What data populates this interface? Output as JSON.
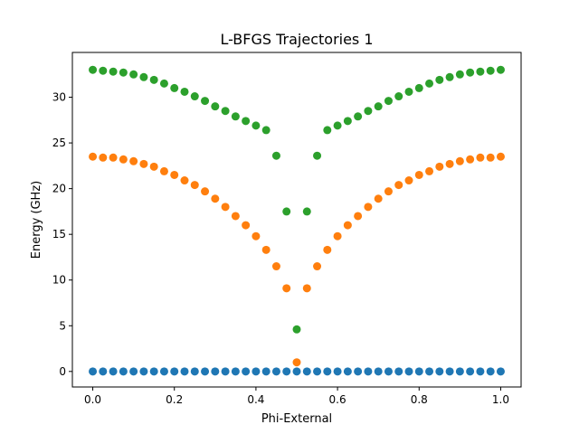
{
  "chart_data": {
    "type": "scatter",
    "title": "L-BFGS Trajectories 1",
    "xlabel": "Phi-External",
    "ylabel": "Energy (GHz)",
    "xlim": [
      -0.05,
      1.05
    ],
    "ylim": [
      -1.7,
      34.9
    ],
    "x_ticks": [
      0.0,
      0.2,
      0.4,
      0.6,
      0.8,
      1.0
    ],
    "x_tick_labels": [
      "0.0",
      "0.2",
      "0.4",
      "0.6",
      "0.8",
      "1.0"
    ],
    "y_ticks": [
      0,
      5,
      10,
      15,
      20,
      25,
      30
    ],
    "y_tick_labels": [
      "0",
      "5",
      "10",
      "15",
      "20",
      "25",
      "30"
    ],
    "grid": false,
    "x": [
      0.0,
      0.025,
      0.05,
      0.075,
      0.1,
      0.125,
      0.15,
      0.175,
      0.2,
      0.225,
      0.25,
      0.275,
      0.3,
      0.325,
      0.35,
      0.375,
      0.4,
      0.425,
      0.45,
      0.475,
      0.5,
      0.525,
      0.55,
      0.575,
      0.6,
      0.625,
      0.65,
      0.675,
      0.7,
      0.725,
      0.75,
      0.775,
      0.8,
      0.825,
      0.85,
      0.875,
      0.9,
      0.925,
      0.95,
      0.975,
      1.0
    ],
    "series": [
      {
        "color": "#1f77b4",
        "values": [
          0,
          0,
          0,
          0,
          0,
          0,
          0,
          0,
          0,
          0,
          0,
          0,
          0,
          0,
          0,
          0,
          0,
          0,
          0,
          0,
          0,
          0,
          0,
          0,
          0,
          0,
          0,
          0,
          0,
          0,
          0,
          0,
          0,
          0,
          0,
          0,
          0,
          0,
          0,
          0,
          0
        ]
      },
      {
        "color": "#ff7f0e",
        "values": [
          23.5,
          23.4,
          23.4,
          23.2,
          23.0,
          22.7,
          22.4,
          21.9,
          21.5,
          20.9,
          20.4,
          19.7,
          18.9,
          18.0,
          17.0,
          16.0,
          14.8,
          13.3,
          11.5,
          9.1,
          1.0,
          9.1,
          11.5,
          13.3,
          14.8,
          16.0,
          17.0,
          18.0,
          18.9,
          19.7,
          20.4,
          20.9,
          21.5,
          21.9,
          22.4,
          22.7,
          23.0,
          23.2,
          23.4,
          23.4,
          23.5
        ]
      },
      {
        "color": "#2ca02c",
        "values": [
          33.0,
          32.9,
          32.8,
          32.7,
          32.5,
          32.2,
          31.9,
          31.5,
          31.0,
          30.6,
          30.1,
          29.6,
          29.0,
          28.5,
          27.9,
          27.4,
          26.9,
          26.4,
          23.6,
          17.5,
          4.6,
          17.5,
          23.6,
          26.4,
          26.9,
          27.4,
          27.9,
          28.5,
          29.0,
          29.6,
          30.1,
          30.6,
          31.0,
          31.5,
          31.9,
          32.2,
          32.5,
          32.7,
          32.8,
          32.9,
          33.0
        ]
      }
    ]
  }
}
